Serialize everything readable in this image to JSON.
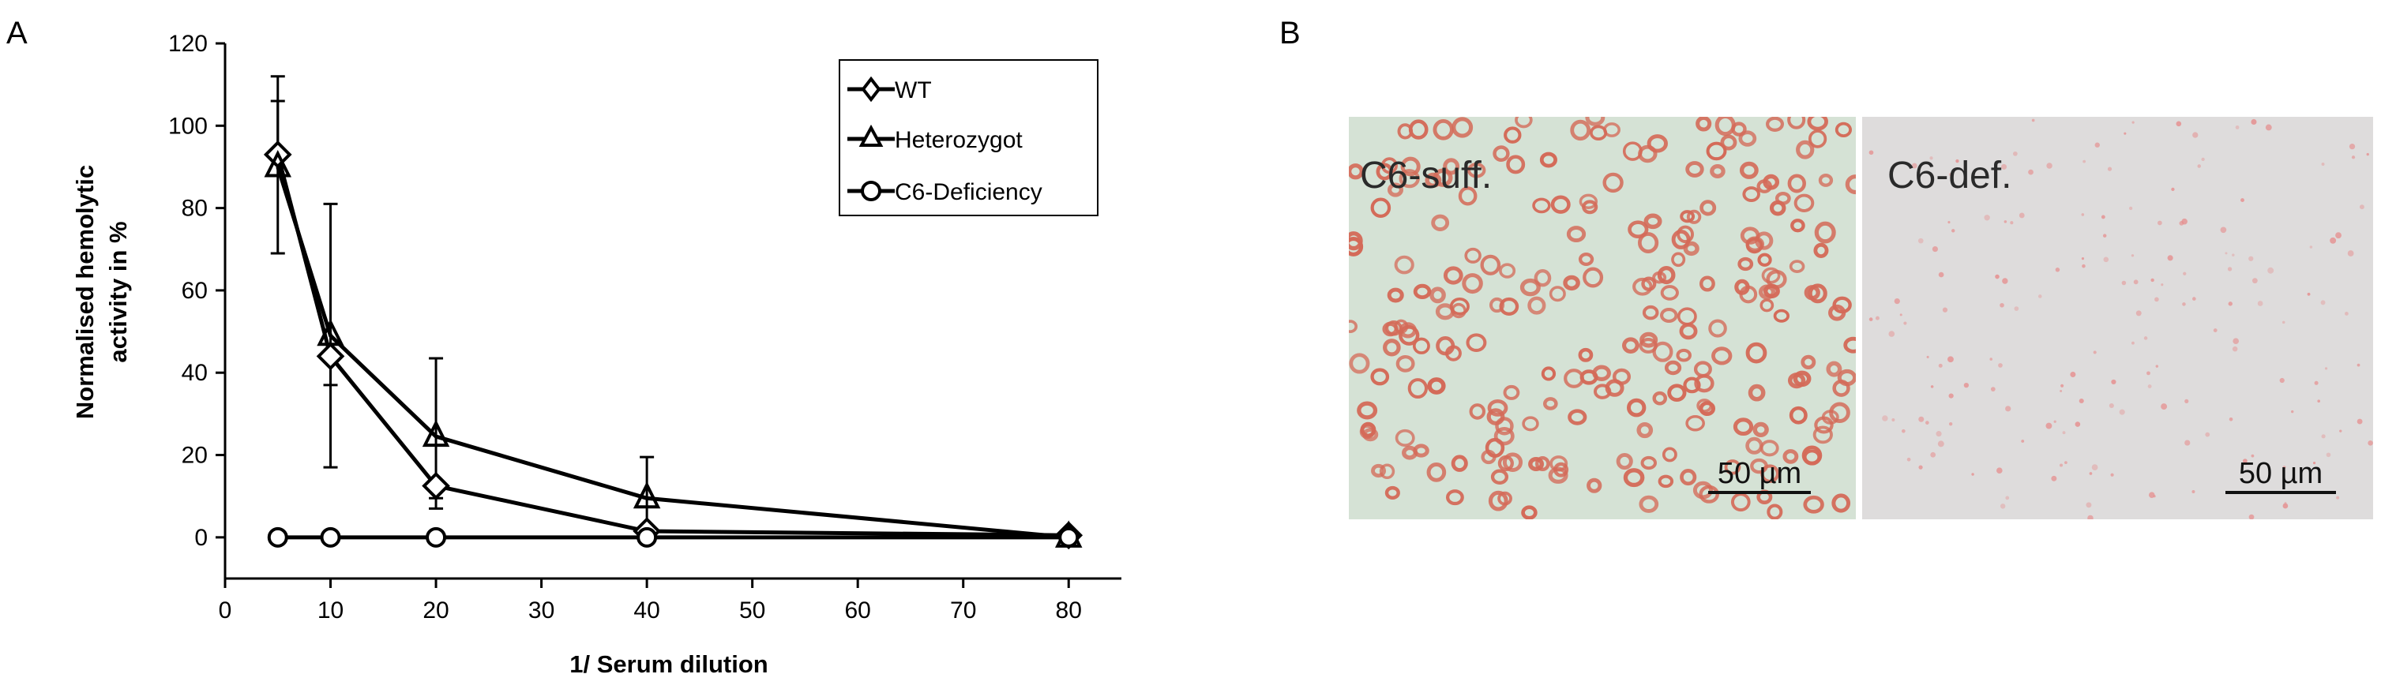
{
  "panel_labels": {
    "a": "A",
    "b": "B"
  },
  "chart_data": {
    "type": "line",
    "x": [
      5,
      10,
      20,
      40,
      80
    ],
    "xlabel": "1/ Serum dilution",
    "ylabel_line1": "Normalised hemolytic",
    "ylabel_line2": "activity in %",
    "xlim": [
      0,
      85
    ],
    "ylim": [
      -10,
      120
    ],
    "xticks": [
      0,
      10,
      20,
      30,
      40,
      50,
      60,
      70,
      80
    ],
    "yticks": [
      0,
      20,
      40,
      60,
      80,
      100,
      120
    ],
    "legend_position": "top-right",
    "series": [
      {
        "name": "WT",
        "marker": "diamond",
        "values": [
          93,
          44,
          12.5,
          1.5,
          0.5
        ],
        "err_up": [
          19,
          0,
          0,
          0,
          0
        ],
        "err_down": [
          0,
          27,
          5.5,
          0,
          0
        ]
      },
      {
        "name": "Heterozygot",
        "marker": "triangle",
        "values": [
          90,
          49,
          24.5,
          9.5,
          0
        ],
        "err_up": [
          16,
          32,
          19,
          10,
          0
        ],
        "err_down": [
          21,
          12,
          15,
          9,
          0
        ]
      },
      {
        "name": "C6-Deficiency",
        "marker": "circle",
        "values": [
          0,
          0,
          0,
          0,
          0
        ],
        "err_up": [
          0,
          0,
          0,
          0,
          0
        ],
        "err_down": [
          0,
          0,
          0,
          0,
          0
        ]
      }
    ]
  },
  "micrographs": [
    {
      "label": "C6-suff.",
      "scale_bar": "50 µm",
      "tint": "#d5e2d5"
    },
    {
      "label": "C6-def.",
      "scale_bar": "50 µm",
      "tint": "#dedcdc"
    }
  ],
  "colors": {
    "cells": "#d46a58",
    "specks": "#e68a8a"
  }
}
